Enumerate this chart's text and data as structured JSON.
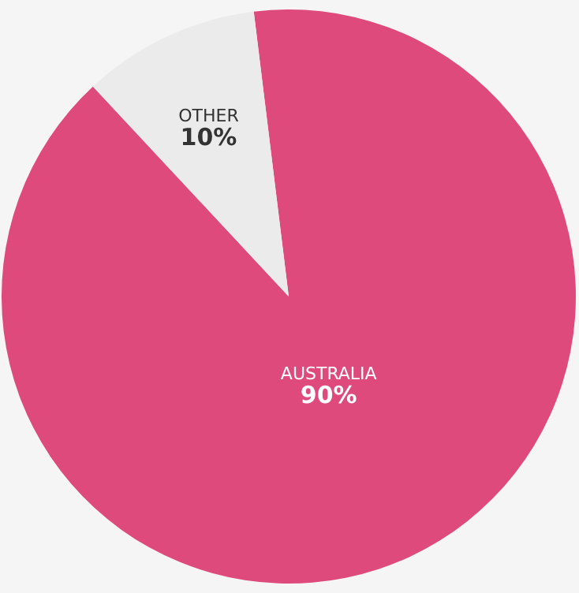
{
  "chart_data": {
    "type": "pie",
    "categories": [
      "AUSTRALIA",
      "OTHER"
    ],
    "values": [
      90,
      10
    ],
    "colors": [
      "#de4a7b",
      "#ebebeb"
    ],
    "value_labels": [
      "90%",
      "10%"
    ]
  }
}
